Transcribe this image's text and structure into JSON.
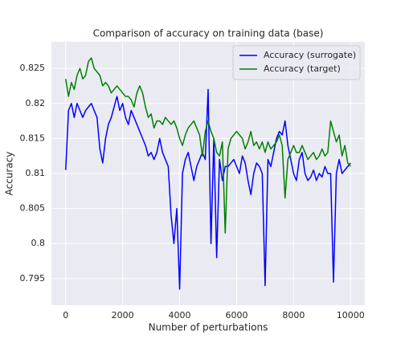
{
  "chart_data": {
    "type": "line",
    "title": "Comparison of accuracy on training data (base)",
    "xlabel": "Number of perturbations",
    "ylabel": "Accuracy",
    "x": [
      0,
      100,
      200,
      300,
      400,
      500,
      600,
      700,
      800,
      900,
      1000,
      1100,
      1200,
      1300,
      1400,
      1500,
      1600,
      1700,
      1800,
      1900,
      2000,
      2100,
      2200,
      2300,
      2400,
      2500,
      2600,
      2700,
      2800,
      2900,
      3000,
      3100,
      3200,
      3300,
      3400,
      3500,
      3600,
      3700,
      3800,
      3900,
      4000,
      4100,
      4200,
      4300,
      4400,
      4500,
      4600,
      4700,
      4800,
      4900,
      5000,
      5100,
      5200,
      5300,
      5400,
      5500,
      5600,
      5700,
      5800,
      5900,
      6000,
      6100,
      6200,
      6300,
      6400,
      6500,
      6600,
      6700,
      6800,
      6900,
      7000,
      7100,
      7200,
      7300,
      7400,
      7500,
      7600,
      7700,
      7800,
      7900,
      8000,
      8100,
      8200,
      8300,
      8400,
      8500,
      8600,
      8700,
      8800,
      8900,
      9000,
      9100,
      9200,
      9300,
      9400,
      9500,
      9600,
      9700,
      9800,
      9900,
      10000
    ],
    "series": [
      {
        "name": "Accuracy (surrogate)",
        "color": "#0000ff",
        "values": [
          0.8105,
          0.819,
          0.82,
          0.818,
          0.82,
          0.819,
          0.818,
          0.819,
          0.8195,
          0.82,
          0.819,
          0.818,
          0.8135,
          0.8115,
          0.815,
          0.817,
          0.818,
          0.8195,
          0.821,
          0.819,
          0.82,
          0.818,
          0.817,
          0.819,
          0.818,
          0.817,
          0.816,
          0.815,
          0.814,
          0.8125,
          0.813,
          0.812,
          0.813,
          0.815,
          0.813,
          0.812,
          0.811,
          0.804,
          0.8,
          0.805,
          0.7935,
          0.81,
          0.812,
          0.813,
          0.811,
          0.809,
          0.811,
          0.812,
          0.813,
          0.812,
          0.822,
          0.8,
          0.815,
          0.798,
          0.812,
          0.809,
          0.811,
          0.811,
          0.8115,
          0.812,
          0.811,
          0.81,
          0.8125,
          0.8115,
          0.809,
          0.807,
          0.81,
          0.8115,
          0.811,
          0.81,
          0.794,
          0.812,
          0.811,
          0.813,
          0.815,
          0.816,
          0.8155,
          0.8175,
          0.814,
          0.812,
          0.81,
          0.809,
          0.812,
          0.813,
          0.81,
          0.809,
          0.8095,
          0.8105,
          0.809,
          0.81,
          0.8095,
          0.811,
          0.81,
          0.81,
          0.7945,
          0.81,
          0.812,
          0.81,
          0.8105,
          0.811,
          0.8115
        ]
      },
      {
        "name": "Accuracy (target)",
        "color": "#008000",
        "values": [
          0.8235,
          0.821,
          0.823,
          0.822,
          0.824,
          0.825,
          0.8235,
          0.824,
          0.826,
          0.8265,
          0.825,
          0.8245,
          0.824,
          0.8225,
          0.823,
          0.8225,
          0.8215,
          0.822,
          0.8225,
          0.822,
          0.8215,
          0.821,
          0.821,
          0.8205,
          0.8195,
          0.8215,
          0.8225,
          0.8215,
          0.8195,
          0.818,
          0.8185,
          0.8165,
          0.8175,
          0.8175,
          0.817,
          0.818,
          0.8175,
          0.817,
          0.8175,
          0.8165,
          0.815,
          0.814,
          0.8155,
          0.8165,
          0.817,
          0.8175,
          0.8165,
          0.8155,
          0.8125,
          0.816,
          0.8175,
          0.816,
          0.815,
          0.813,
          0.8125,
          0.8145,
          0.8015,
          0.8135,
          0.815,
          0.8155,
          0.816,
          0.8155,
          0.815,
          0.8135,
          0.8145,
          0.816,
          0.814,
          0.8145,
          0.8135,
          0.8145,
          0.813,
          0.8145,
          0.8135,
          0.814,
          0.8145,
          0.8155,
          0.814,
          0.8065,
          0.812,
          0.813,
          0.814,
          0.813,
          0.813,
          0.814,
          0.813,
          0.812,
          0.8125,
          0.813,
          0.812,
          0.8125,
          0.8135,
          0.8125,
          0.813,
          0.8175,
          0.816,
          0.8145,
          0.8155,
          0.8125,
          0.814,
          0.8115,
          0.811
        ]
      }
    ],
    "xlim": [
      -500,
      10500
    ],
    "xticks": [
      0,
      2000,
      4000,
      6000,
      8000,
      10000
    ],
    "ylim": [
      0.7912,
      0.8288
    ],
    "yticks": [
      0.795,
      0.8,
      0.805,
      0.81,
      0.815,
      0.82,
      0.825
    ],
    "grid": true,
    "legend": "upper right"
  }
}
